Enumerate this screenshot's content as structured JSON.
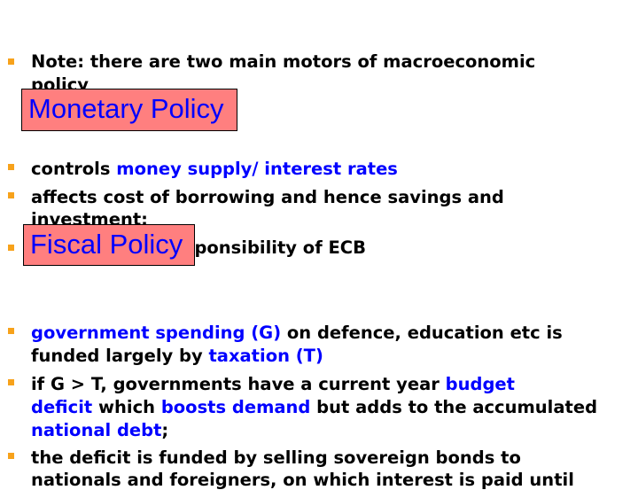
{
  "note": {
    "line1": "Note: there are two main motors of macroeconomic",
    "line2": "policy"
  },
  "monetary": {
    "title": "Monetary Policy",
    "b1": {
      "a": "controls ",
      "b": "money supply/ interest rates"
    },
    "b2": {
      "line1": "affects cost of borrowing and hence savings and",
      "line2": "investment;"
    },
    "b3": "responsibility of ECB"
  },
  "fiscal": {
    "title": "Fiscal Policy",
    "b1": {
      "a": "government spending (G)",
      "b": " on defence, education etc is",
      "c": "funded largely by ",
      "d": "taxation (T)"
    },
    "b2": {
      "a": "if G > T, governments have a current year ",
      "b": "budget",
      "c": "deficit",
      "d": " which ",
      "e": "boosts demand",
      "f": " but adds to the accumulated",
      "g": "national debt",
      "h": ";"
    },
    "b3": {
      "line1": "the deficit is funded by selling sovereign bonds to",
      "line2": "nationals and foreigners, on which interest is paid until"
    }
  },
  "colors": {
    "bullet": "#f7a21b",
    "highlight": "#0000ff",
    "box": "#ff7f7f"
  }
}
